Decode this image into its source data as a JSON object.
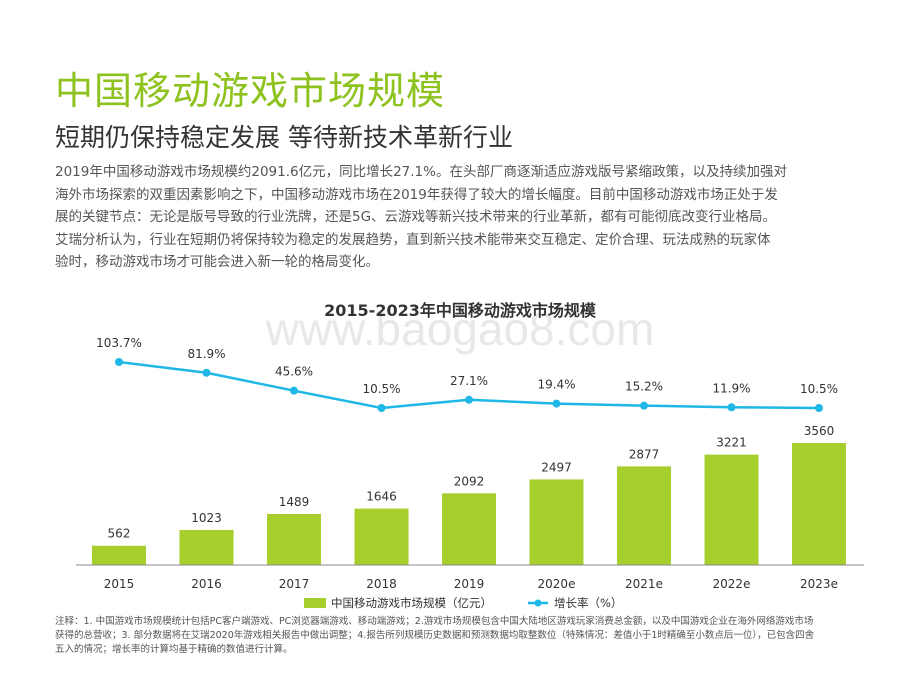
{
  "page": {
    "title": "中国移动游戏市场规模",
    "subtitle": "短期仍保持稳定发展 等待新技术革新行业",
    "description": [
      "2019年中国移动游戏市场规模约2091.6亿元，同比增长27.1%。在头部厂商逐渐适应游戏版号紧缩政策，以及持续加强对",
      "海外市场探索的双重因素影响之下，中国移动游戏市场在2019年获得了较大的增长幅度。目前中国移动游戏市场正处于发",
      "展的关键节点：无论是版号导致的行业洗牌，还是5G、云游戏等新兴技术带来的行业革新，都有可能彻底改变行业格局。",
      "艾瑞分析认为，行业在短期仍将保持较为稳定的发展趋势，直到新兴技术能带来交互稳定、定价合理、玩法成熟的玩家体",
      "验时，移动游戏市场才可能会进入新一轮的格局变化。"
    ],
    "note": [
      "注释：1. 中国游戏市场规模统计包括PC客户端游戏、PC浏览器端游戏、移动端游戏；2.游戏市场规模包含中国大陆地区游戏玩家消费总金额，以及中国游戏企业在海外网络游戏市场",
      "获得的总营收；3. 部分数据将在艾瑞2020年游戏相关报告中做出调整；4.报告所列规模历史数据和预测数据均取整数位（特殊情况：差值小于1时精确至小数点后一位），已包含四舍",
      "五入的情况；增长率的计算均基于精确的数值进行计算。"
    ],
    "watermark": "www.baogao8.com",
    "colors": {
      "bar": "#a6cf2e",
      "line": "#1fb8e6",
      "title": "#8dc21f"
    }
  },
  "chart_data": {
    "type": "bar",
    "title": "2015-2023年中国移动游戏市场规模",
    "categories": [
      "2015",
      "2016",
      "2017",
      "2018",
      "2019",
      "2020e",
      "2021e",
      "2022e",
      "2023e"
    ],
    "series": [
      {
        "name": "中国移动游戏市场规模（亿元）",
        "type": "bar",
        "values": [
          562,
          1023,
          1489,
          1646,
          2092,
          2497,
          2877,
          3221,
          3560
        ]
      },
      {
        "name": "增长率（%）",
        "type": "line",
        "values": [
          103.7,
          81.9,
          45.6,
          10.5,
          27.1,
          19.4,
          15.2,
          11.9,
          10.5
        ]
      }
    ],
    "bar_labels": [
      "562",
      "1023",
      "1489",
      "1646",
      "2092",
      "2497",
      "2877",
      "3221",
      "3560"
    ],
    "line_labels": [
      "103.7%",
      "81.9%",
      "45.6%",
      "10.5%",
      "27.1%",
      "19.4%",
      "15.2%",
      "11.9%",
      "10.5%"
    ],
    "legend_position": "bottom",
    "grid": false
  }
}
